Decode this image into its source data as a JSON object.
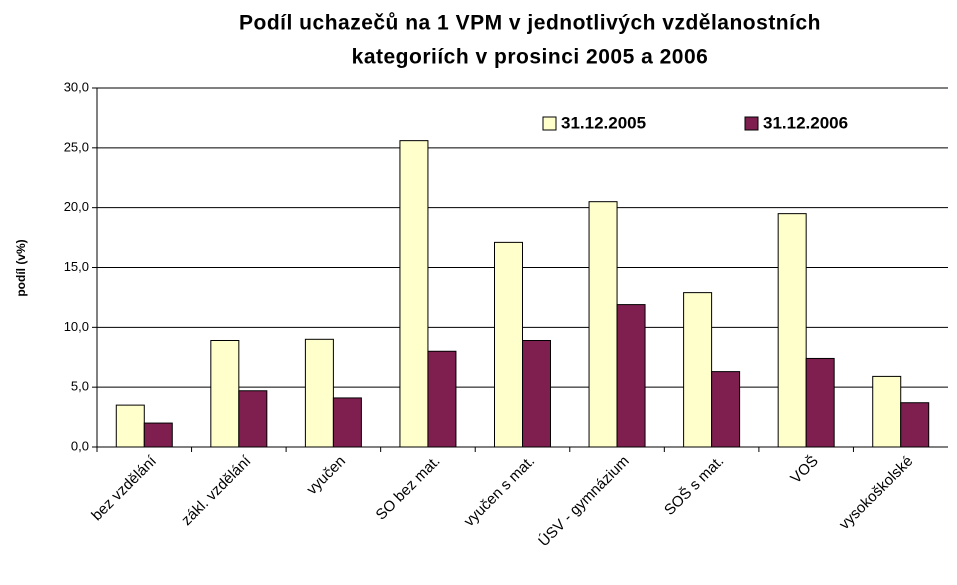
{
  "chart_data": {
    "type": "bar",
    "title": [
      "Podíl uchazečů na 1 VPM v jednotlivých vzdělanostních",
      "kategoriích v prosinci 2005 a 2006"
    ],
    "ylabel": "podíl (v%)",
    "categories": [
      "bez vzdělání",
      "zákl. vzdělání",
      "vyučen",
      "SO bez mat.",
      "vyučen s mat.",
      "ÚSV - gymnázium",
      "SOŠ s mat.",
      "VOŠ",
      "vysokoškolské"
    ],
    "series": [
      {
        "name": "31.12.2005",
        "color": "#ffffcc",
        "values": [
          3.5,
          8.9,
          9.0,
          25.6,
          17.1,
          20.5,
          12.9,
          19.5,
          5.9
        ]
      },
      {
        "name": "31.12.2006",
        "color": "#7f1f4f",
        "values": [
          2.0,
          4.7,
          4.1,
          8.0,
          8.9,
          11.9,
          6.3,
          7.4,
          3.7
        ]
      }
    ],
    "ylim": [
      0,
      30
    ],
    "yticks": [
      {
        "value": 0,
        "label": "0,0"
      },
      {
        "value": 5,
        "label": "5,0"
      },
      {
        "value": 10,
        "label": "10,0"
      },
      {
        "value": 15,
        "label": "15,0"
      },
      {
        "value": 20,
        "label": "20,0"
      },
      {
        "value": 25,
        "label": "25,0"
      },
      {
        "value": 30,
        "label": "30,0"
      }
    ],
    "grid": true,
    "legend": "top-right"
  }
}
